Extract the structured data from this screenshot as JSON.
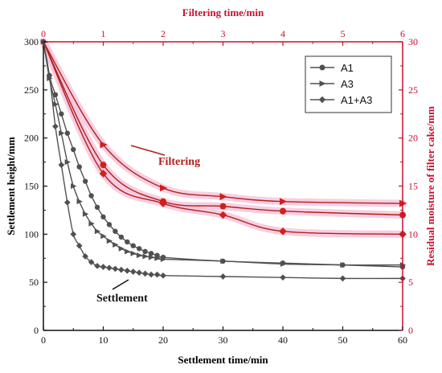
{
  "chart_data": {
    "type": "line",
    "bottom_axis": {
      "label": "Settlement time/min",
      "range": [
        0,
        60
      ],
      "ticks": [
        "0",
        "10",
        "20",
        "30",
        "40",
        "50",
        "60"
      ]
    },
    "top_axis": {
      "label": "Filtering time/min",
      "range": [
        0,
        6
      ],
      "ticks": [
        "0",
        "1",
        "2",
        "3",
        "4",
        "5",
        "6"
      ],
      "color": "#c8102e"
    },
    "left_axis": {
      "label": "Settlement height/mm",
      "range": [
        0,
        300
      ],
      "ticks": [
        "0",
        "50",
        "100",
        "150",
        "200",
        "250",
        "300"
      ]
    },
    "right_axis": {
      "label": "Residual moisture of filter cake/mm",
      "range": [
        0,
        30
      ],
      "ticks": [
        "0",
        "5",
        "10",
        "15",
        "20",
        "25",
        "30"
      ],
      "color": "#c8102e"
    },
    "legend": {
      "placement": "top-right",
      "entries": [
        {
          "name": "A1",
          "marker": "circle"
        },
        {
          "name": "A3",
          "marker": "triangle-right"
        },
        {
          "name": "A1+A3",
          "marker": "diamond"
        }
      ]
    },
    "annotations": {
      "filtering": "Filtering",
      "settlement": "Settlement"
    },
    "colors": {
      "settlement": "#505050",
      "filtering": "#b0201c",
      "band": "#f7c6dc"
    },
    "settlement_series": [
      {
        "name": "A1",
        "marker": "circle",
        "x": [
          0,
          1,
          2,
          3,
          4,
          5,
          6,
          7,
          8,
          9,
          10,
          11,
          12,
          13,
          14,
          15,
          16,
          17,
          18,
          19,
          20,
          30,
          40,
          50,
          60
        ],
        "y": [
          300,
          265,
          245,
          225,
          205,
          188,
          170,
          155,
          140,
          128,
          118,
          110,
          103,
          97,
          92,
          88,
          85,
          82,
          80,
          78,
          76,
          72,
          70,
          68,
          66
        ]
      },
      {
        "name": "A3",
        "marker": "triangle-right",
        "x": [
          0,
          1,
          2,
          3,
          4,
          5,
          6,
          7,
          8,
          9,
          10,
          11,
          12,
          13,
          14,
          15,
          16,
          17,
          18,
          19,
          20,
          30,
          40,
          50,
          60
        ],
        "y": [
          300,
          262,
          235,
          205,
          175,
          150,
          134,
          121,
          111,
          103,
          98,
          93,
          89,
          85,
          82,
          80,
          78,
          77,
          76,
          75,
          74,
          72,
          69,
          68,
          68
        ]
      },
      {
        "name": "A1+A3",
        "marker": "diamond",
        "x": [
          0,
          1,
          2,
          3,
          4,
          5,
          6,
          7,
          8,
          9,
          10,
          11,
          12,
          13,
          14,
          15,
          16,
          17,
          18,
          19,
          20,
          30,
          40,
          50,
          60
        ],
        "y": [
          300,
          265,
          212,
          172,
          133,
          100,
          88,
          77,
          71,
          67,
          66,
          65,
          64,
          63,
          62,
          61,
          60,
          59,
          58,
          58,
          57,
          56,
          55,
          54,
          54
        ]
      }
    ],
    "filtering_series": [
      {
        "name": "A1",
        "marker": "circle",
        "x": [
          0,
          1,
          2,
          3,
          4,
          6
        ],
        "y": [
          30,
          17.2,
          13.4,
          12.9,
          12.4,
          12.0
        ]
      },
      {
        "name": "A3",
        "marker": "triangle-right",
        "x": [
          0,
          1,
          2,
          3,
          4,
          6
        ],
        "y": [
          30,
          19.3,
          14.8,
          13.9,
          13.4,
          13.2
        ]
      },
      {
        "name": "A1+A3",
        "marker": "diamond",
        "x": [
          0,
          1,
          2,
          3,
          4,
          6
        ],
        "y": [
          30,
          16.3,
          13.2,
          12.0,
          10.3,
          10.0
        ]
      }
    ]
  }
}
